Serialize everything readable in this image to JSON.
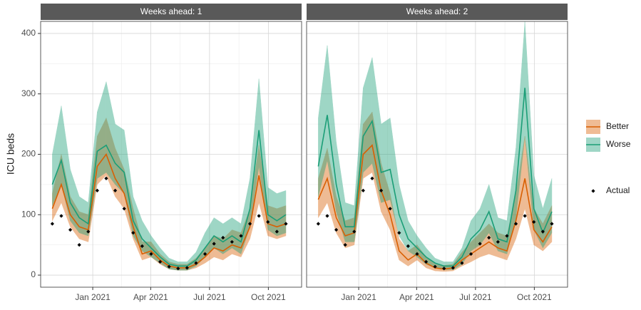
{
  "chart_data": [
    {
      "type": "line",
      "title": "Weeks ahead: 1",
      "ylabel": "ICU beds",
      "legend": "right",
      "grid": true,
      "x": [
        -9,
        -7,
        -5,
        -3,
        -1,
        1,
        3,
        5,
        7,
        9,
        11,
        13,
        15,
        17,
        19,
        21,
        23,
        25,
        27,
        29,
        31,
        33,
        35,
        37,
        39,
        41,
        43
      ],
      "xlim": [
        -11.6,
        46.5
      ],
      "xticks": [
        {
          "value": 0,
          "label": "Jan 2021"
        },
        {
          "value": 12.9,
          "label": "Apr 2021"
        },
        {
          "value": 26,
          "label": "Jul 2021"
        },
        {
          "value": 39.1,
          "label": "Oct 2021"
        }
      ],
      "ylim": [
        -20,
        420
      ],
      "yticks": [
        0,
        100,
        200,
        300,
        400
      ],
      "series": [
        {
          "name": "Better",
          "color": "#d95f02",
          "style": "line",
          "values": [
            110,
            150,
            100,
            80,
            75,
            180,
            200,
            160,
            135,
            80,
            35,
            40,
            25,
            15,
            12,
            12,
            18,
            30,
            45,
            40,
            50,
            45,
            80,
            165,
            85,
            80,
            85
          ],
          "lower": [
            90,
            120,
            80,
            60,
            55,
            150,
            165,
            130,
            110,
            60,
            25,
            30,
            18,
            10,
            8,
            8,
            12,
            20,
            30,
            25,
            35,
            30,
            60,
            120,
            65,
            60,
            65
          ],
          "upper": [
            135,
            200,
            130,
            105,
            100,
            230,
            260,
            210,
            175,
            110,
            55,
            55,
            35,
            22,
            18,
            18,
            28,
            45,
            65,
            60,
            75,
            70,
            110,
            215,
            115,
            110,
            115
          ]
        },
        {
          "name": "Worse",
          "color": "#1b9e77",
          "style": "line",
          "values": [
            150,
            190,
            120,
            95,
            85,
            205,
            215,
            185,
            170,
            90,
            60,
            45,
            30,
            18,
            15,
            15,
            25,
            45,
            65,
            55,
            65,
            55,
            110,
            240,
            100,
            90,
            100
          ],
          "lower": [
            115,
            150,
            90,
            70,
            65,
            160,
            170,
            150,
            135,
            65,
            40,
            30,
            20,
            10,
            8,
            8,
            15,
            30,
            45,
            35,
            45,
            35,
            80,
            180,
            75,
            65,
            70
          ],
          "upper": [
            200,
            280,
            175,
            130,
            120,
            270,
            320,
            250,
            240,
            130,
            90,
            65,
            45,
            28,
            22,
            22,
            38,
            70,
            95,
            85,
            95,
            85,
            160,
            325,
            145,
            135,
            140
          ]
        },
        {
          "name": "Actual",
          "color": "#000000",
          "style": "points",
          "values": [
            85,
            98,
            75,
            50,
            72,
            140,
            160,
            140,
            110,
            70,
            48,
            35,
            22,
            14,
            11,
            12,
            20,
            35,
            52,
            62,
            55,
            65,
            85,
            98,
            88,
            72,
            85
          ]
        }
      ]
    },
    {
      "type": "line",
      "title": "Weeks ahead: 2",
      "grid": true,
      "x": [
        -9,
        -7,
        -5,
        -3,
        -1,
        1,
        3,
        5,
        7,
        9,
        11,
        13,
        15,
        17,
        19,
        21,
        23,
        25,
        27,
        29,
        31,
        33,
        35,
        37,
        39,
        41,
        43
      ],
      "xlim": [
        -11.6,
        46.5
      ],
      "xticks": [
        {
          "value": 0,
          "label": "Jan 2021"
        },
        {
          "value": 12.9,
          "label": "Apr 2021"
        },
        {
          "value": 26,
          "label": "Jul 2021"
        },
        {
          "value": 39.1,
          "label": "Oct 2021"
        }
      ],
      "ylim": [
        -20,
        420
      ],
      "yticks": [
        0,
        100,
        200,
        300,
        400
      ],
      "series": [
        {
          "color": "#d95f02",
          "style": "line",
          "values": [
            125,
            160,
            95,
            65,
            70,
            200,
            215,
            140,
            100,
            40,
            25,
            35,
            20,
            12,
            10,
            12,
            25,
            35,
            45,
            55,
            45,
            40,
            90,
            160,
            75,
            55,
            80
          ],
          "lower": [
            95,
            120,
            70,
            45,
            50,
            160,
            170,
            105,
            75,
            25,
            15,
            25,
            12,
            7,
            6,
            7,
            15,
            22,
            30,
            35,
            30,
            25,
            60,
            110,
            50,
            40,
            55
          ],
          "upper": [
            160,
            210,
            130,
            90,
            95,
            250,
            270,
            185,
            135,
            60,
            40,
            50,
            30,
            18,
            16,
            18,
            38,
            55,
            70,
            85,
            70,
            65,
            135,
            230,
            110,
            85,
            115
          ]
        },
        {
          "color": "#1b9e77",
          "style": "line",
          "values": [
            180,
            265,
            150,
            80,
            80,
            230,
            255,
            170,
            175,
            100,
            60,
            45,
            30,
            20,
            15,
            15,
            30,
            60,
            75,
            105,
            60,
            55,
            140,
            310,
            110,
            70,
            105
          ],
          "lower": [
            130,
            190,
            105,
            55,
            55,
            170,
            185,
            120,
            125,
            65,
            40,
            30,
            18,
            12,
            9,
            9,
            18,
            40,
            50,
            70,
            40,
            35,
            95,
            230,
            75,
            45,
            70
          ],
          "upper": [
            260,
            380,
            220,
            120,
            115,
            310,
            360,
            250,
            260,
            150,
            90,
            65,
            45,
            28,
            22,
            22,
            45,
            90,
            110,
            150,
            95,
            90,
            210,
            420,
            165,
            110,
            160
          ]
        },
        {
          "color": "#000000",
          "style": "points",
          "values": [
            85,
            98,
            75,
            50,
            72,
            140,
            160,
            140,
            110,
            70,
            48,
            35,
            22,
            14,
            11,
            12,
            20,
            35,
            52,
            62,
            55,
            65,
            85,
            98,
            88,
            72,
            85
          ]
        }
      ]
    }
  ]
}
